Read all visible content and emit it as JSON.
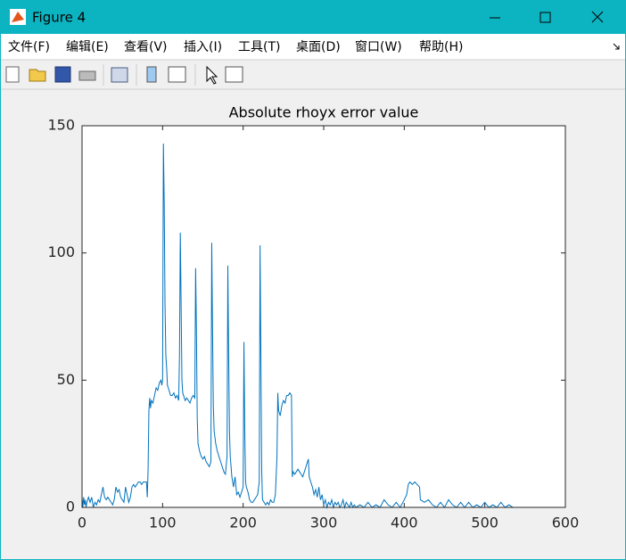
{
  "window": {
    "title": "Figure 4"
  },
  "menu": {
    "items": [
      "文件(F)",
      "编辑(E)",
      "查看(V)",
      "插入(I)",
      "工具(T)",
      "桌面(D)",
      "窗口(W)",
      "帮助(H)"
    ]
  },
  "chart_data": {
    "type": "line",
    "title": "Absolute rhoyx error value",
    "x": [
      0,
      1,
      2,
      3,
      4,
      5,
      6,
      8,
      10,
      12,
      14,
      16,
      18,
      20,
      22,
      24,
      26,
      28,
      30,
      32,
      34,
      36,
      38,
      40,
      42,
      44,
      46,
      48,
      50,
      52,
      54,
      56,
      58,
      60,
      62,
      64,
      66,
      68,
      70,
      72,
      74,
      76,
      78,
      80,
      81,
      82,
      83,
      84,
      85,
      86,
      88,
      90,
      92,
      94,
      96,
      98,
      99,
      100,
      101,
      102,
      103,
      104,
      105,
      106,
      108,
      110,
      112,
      114,
      116,
      118,
      120,
      121,
      122,
      123,
      124,
      125,
      126,
      128,
      130,
      132,
      134,
      136,
      138,
      140,
      141,
      142,
      143,
      144,
      146,
      148,
      150,
      152,
      154,
      156,
      158,
      160,
      161,
      162,
      163,
      164,
      166,
      168,
      170,
      172,
      174,
      176,
      178,
      180,
      181,
      182,
      183,
      184,
      186,
      188,
      190,
      192,
      194,
      196,
      198,
      200,
      201,
      202,
      203,
      204,
      206,
      208,
      210,
      212,
      214,
      216,
      218,
      220,
      221,
      222,
      223,
      224,
      226,
      228,
      230,
      232,
      234,
      236,
      238,
      240,
      242,
      243,
      244,
      246,
      248,
      250,
      252,
      254,
      256,
      258,
      260,
      261,
      262,
      264,
      266,
      268,
      270,
      272,
      274,
      276,
      278,
      280,
      281,
      282,
      284,
      286,
      288,
      290,
      292,
      294,
      296,
      298,
      300,
      302,
      304,
      306,
      308,
      310,
      312,
      314,
      316,
      318,
      320,
      322,
      324,
      326,
      328,
      330,
      332,
      334,
      336,
      338,
      340,
      345,
      350,
      355,
      360,
      365,
      370,
      375,
      380,
      385,
      390,
      395,
      400,
      403,
      405,
      407,
      410,
      413,
      416,
      419,
      420,
      425,
      430,
      435,
      440,
      445,
      450,
      455,
      460,
      465,
      470,
      475,
      480,
      485,
      490,
      495,
      500,
      505,
      510,
      515,
      520,
      525,
      530,
      535,
      540
    ],
    "series": [
      {
        "color": "#0072bd",
        "values": [
          4,
          0,
          4,
          1,
          3,
          0,
          2,
          4,
          2,
          4,
          0,
          2,
          1,
          3,
          2,
          5,
          8,
          4,
          3,
          4,
          3,
          2,
          1,
          3,
          8,
          6,
          7,
          4,
          3,
          2,
          8,
          5,
          2,
          4,
          8,
          9,
          8,
          9,
          10,
          10,
          9,
          10,
          10,
          10,
          4,
          15,
          38,
          43,
          39,
          42,
          41,
          44,
          47,
          46,
          49,
          50,
          48,
          50,
          143,
          120,
          80,
          60,
          55,
          48,
          46,
          44,
          44,
          45,
          43,
          44,
          42,
          60,
          108,
          80,
          50,
          45,
          44,
          42,
          43,
          42,
          41,
          43,
          44,
          43,
          94,
          70,
          35,
          25,
          22,
          20,
          19,
          20,
          18,
          17,
          16,
          18,
          104,
          70,
          40,
          30,
          25,
          22,
          20,
          18,
          16,
          14,
          13,
          20,
          95,
          60,
          30,
          20,
          12,
          8,
          12,
          5,
          6,
          4,
          6,
          8,
          65,
          30,
          10,
          8,
          6,
          3,
          2,
          2,
          3,
          4,
          5,
          10,
          103,
          60,
          15,
          3,
          2,
          1,
          2,
          1,
          3,
          2,
          2,
          5,
          20,
          45,
          38,
          36,
          40,
          42,
          41,
          44,
          44,
          45,
          44,
          12,
          14,
          13,
          14,
          15,
          14,
          13,
          12,
          14,
          16,
          18,
          19,
          12,
          10,
          8,
          5,
          7,
          4,
          8,
          3,
          5,
          1,
          3,
          0,
          2,
          1,
          3,
          0,
          2,
          1,
          2,
          0,
          1,
          3,
          0,
          2,
          1,
          0,
          2,
          0,
          1,
          0,
          1,
          0,
          2,
          0,
          1,
          0,
          3,
          1,
          0,
          2,
          0,
          3,
          5,
          9,
          10,
          9,
          10,
          9,
          8,
          3,
          2,
          3,
          1,
          0,
          2,
          0,
          3,
          1,
          0,
          2,
          0,
          2,
          0,
          1,
          0,
          2,
          0,
          1,
          0,
          2,
          0,
          1,
          0,
          0
        ]
      }
    ],
    "xlim": [
      0,
      600
    ],
    "ylim": [
      0,
      150
    ],
    "xticks": [
      0,
      100,
      200,
      300,
      400,
      500,
      600
    ],
    "yticks": [
      0,
      50,
      100,
      150
    ],
    "grid": false
  }
}
